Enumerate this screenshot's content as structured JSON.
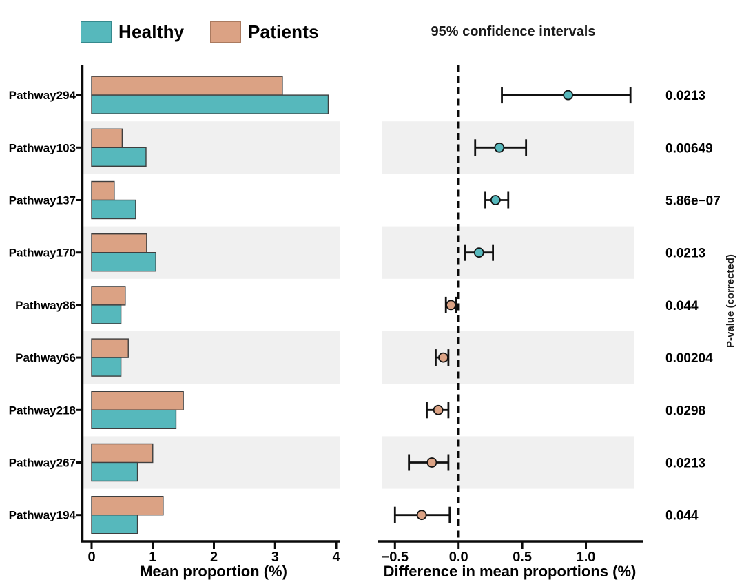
{
  "title": "95% confidence intervals",
  "right_axis_label": "P-value (corrected)",
  "legend": {
    "items": [
      {
        "label": "Healthy",
        "color": "#56b8bc",
        "border": "#35898d"
      },
      {
        "label": "Patients",
        "color": "#dba284",
        "border": "#aa7a5f"
      }
    ]
  },
  "colors": {
    "healthy": "#56b8bc",
    "patients": "#dba284",
    "bar_border": "#3f3f3f",
    "band": "#f0f0f0",
    "axis": "#0a0a0a"
  },
  "chart_data": {
    "type": "bar",
    "subtype": "extended-error-bar",
    "categories": [
      "Pathway294",
      "Pathway103",
      "Pathway137",
      "Pathway170",
      "Pathway86",
      "Pathway66",
      "Pathway218",
      "Pathway267",
      "Pathway194"
    ],
    "left_panel": {
      "xlabel": "Mean proportion (%)",
      "xlim": [
        -0.16,
        4.06
      ],
      "grid": false,
      "xticks": [
        {
          "v": 0,
          "label": "0"
        },
        {
          "v": 1,
          "label": "1"
        },
        {
          "v": 2,
          "label": "2"
        },
        {
          "v": 3,
          "label": "3"
        },
        {
          "v": 4,
          "label": "4"
        }
      ],
      "series": [
        {
          "name": "Patients",
          "color_key": "patients",
          "values": [
            3.12,
            0.5,
            0.37,
            0.9,
            0.55,
            0.6,
            1.5,
            1.0,
            1.17
          ]
        },
        {
          "name": "Healthy",
          "color_key": "healthy",
          "values": [
            3.87,
            0.89,
            0.72,
            1.05,
            0.48,
            0.48,
            1.38,
            0.75,
            0.75
          ]
        }
      ]
    },
    "right_panel": {
      "xlabel": "Difference in mean proportions (%)",
      "xlim": [
        -0.63,
        1.45
      ],
      "zero_line": 0,
      "grid": false,
      "xticks": [
        {
          "v": -0.5,
          "label": "−0.5"
        },
        {
          "v": 0.0,
          "label": "0.0"
        },
        {
          "v": 0.5,
          "label": "0.5"
        },
        {
          "v": 1.0,
          "label": "1.0"
        }
      ],
      "points": [
        {
          "mean": 0.86,
          "lo": 0.34,
          "hi": 1.35,
          "group": "healthy"
        },
        {
          "mean": 0.32,
          "lo": 0.13,
          "hi": 0.53,
          "group": "healthy"
        },
        {
          "mean": 0.29,
          "lo": 0.21,
          "hi": 0.39,
          "group": "healthy"
        },
        {
          "mean": 0.16,
          "lo": 0.05,
          "hi": 0.27,
          "group": "healthy"
        },
        {
          "mean": -0.06,
          "lo": -0.1,
          "hi": -0.02,
          "group": "patients"
        },
        {
          "mean": -0.12,
          "lo": -0.18,
          "hi": -0.08,
          "group": "patients"
        },
        {
          "mean": -0.16,
          "lo": -0.25,
          "hi": -0.08,
          "group": "patients"
        },
        {
          "mean": -0.21,
          "lo": -0.39,
          "hi": -0.08,
          "group": "patients"
        },
        {
          "mean": -0.29,
          "lo": -0.5,
          "hi": -0.07,
          "group": "patients"
        }
      ]
    },
    "p_values": [
      "0.0213",
      "0.00649",
      "5.86e−07",
      "0.0213",
      "0.044",
      "0.00204",
      "0.0298",
      "0.0213",
      "0.044"
    ]
  }
}
